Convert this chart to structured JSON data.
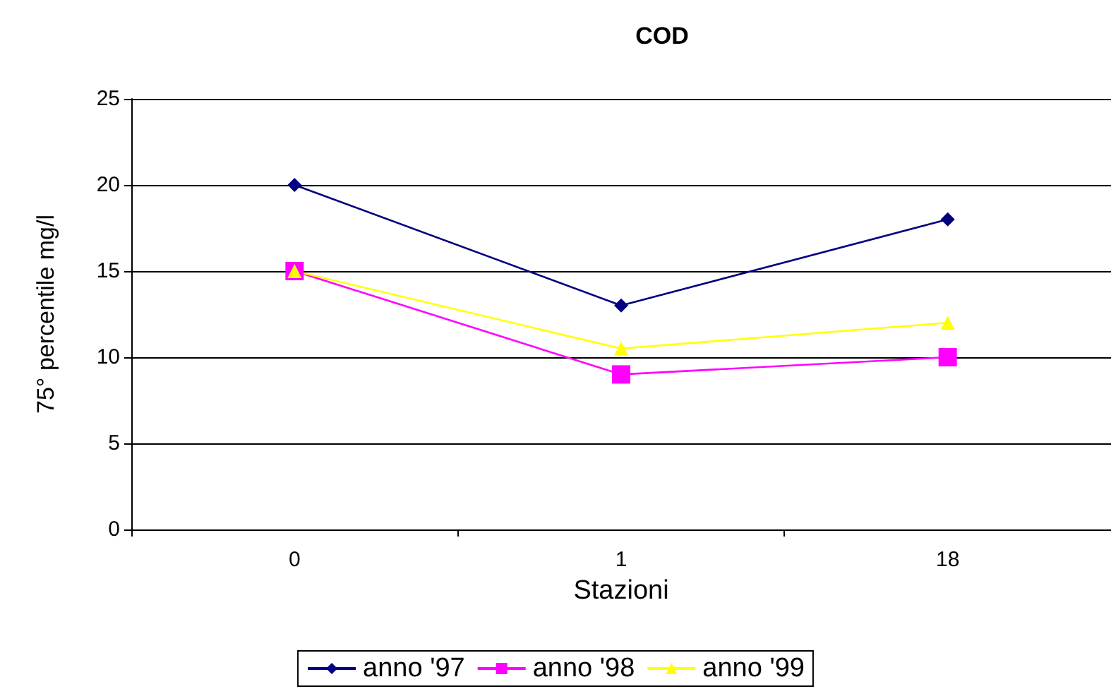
{
  "chart_data": {
    "type": "line",
    "title": "COD",
    "xlabel": "Stazioni",
    "ylabel": "75° percentile mg/l",
    "categories": [
      "0",
      "1",
      "18"
    ],
    "series": [
      {
        "name": "anno '97",
        "color": "#000080",
        "marker": "diamond",
        "values": [
          20,
          13,
          18
        ]
      },
      {
        "name": "anno '98",
        "color": "#ff00ff",
        "marker": "square",
        "values": [
          15,
          9,
          10
        ]
      },
      {
        "name": "anno '99",
        "color": "#ffff00",
        "marker": "triangle",
        "values": [
          15,
          10.5,
          12
        ]
      }
    ],
    "ylim": [
      0,
      25
    ],
    "yticks": [
      0,
      5,
      10,
      15,
      20,
      25
    ],
    "grid": "y",
    "legend": "bottom",
    "line_style": "solid"
  }
}
